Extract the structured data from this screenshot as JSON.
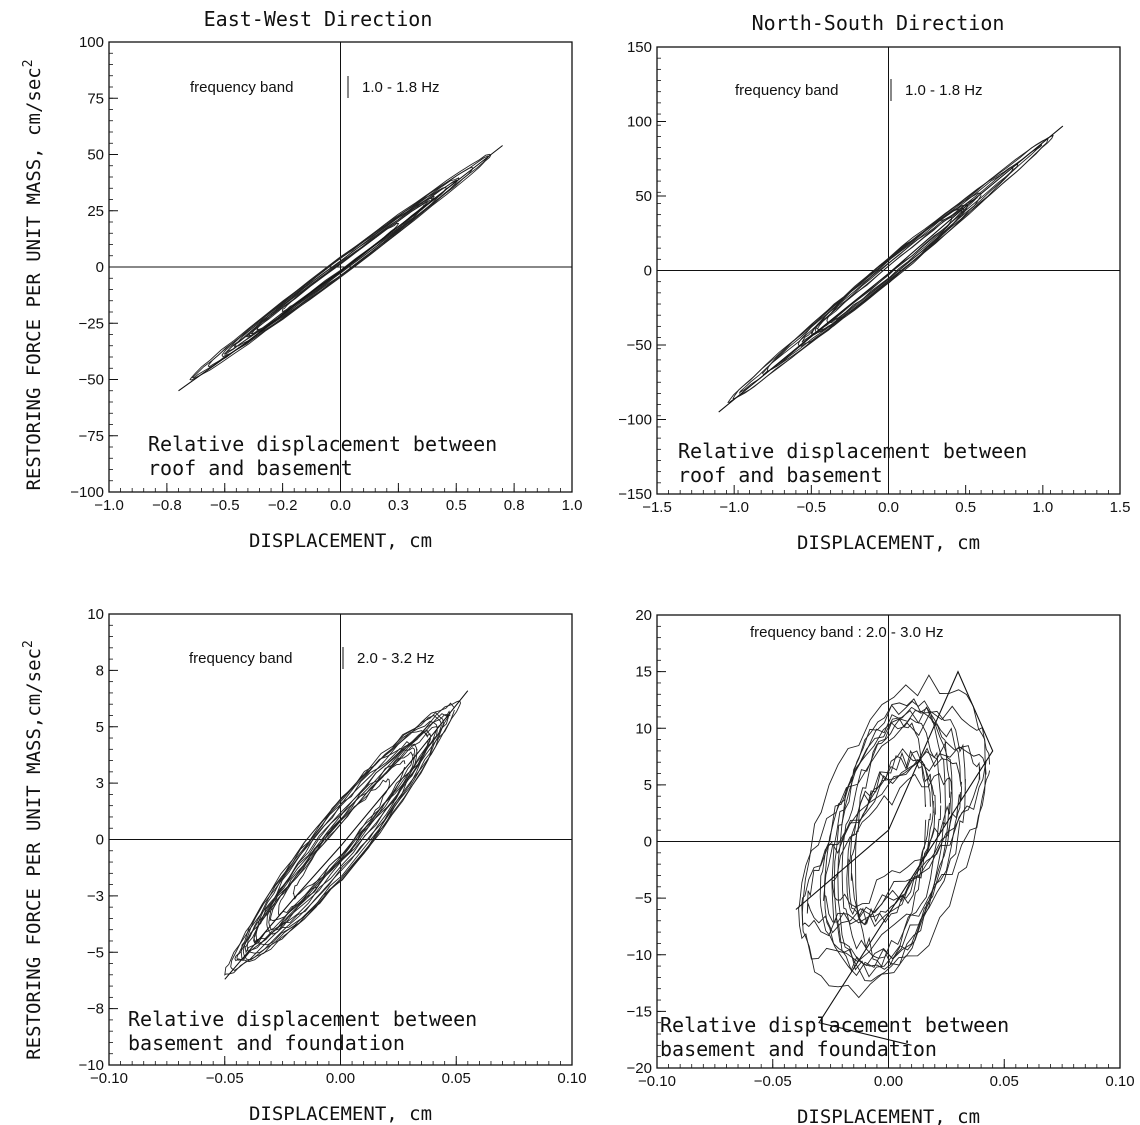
{
  "figure": {
    "column_titles": [
      "East-West Direction",
      "North-South Direction"
    ],
    "row_ylabels": [
      "RESTORING FORCE PER UNIT MASS, cm/sec",
      "RESTORING FORCE PER UNIT MASS,cm/sec"
    ],
    "ylabel_superscript": "2"
  },
  "chart_data": [
    {
      "type": "scatter",
      "title": "East-West Direction",
      "xlabel": "DISPLACEMENT,  cm",
      "xlim": [
        -1.0,
        1.0
      ],
      "ylim": [
        -100,
        100
      ],
      "x_ticks": [
        -1.0,
        -0.75,
        -0.5,
        -0.25,
        0.0,
        0.25,
        0.5,
        0.75,
        1.0
      ],
      "x_tick_labels": [
        "-1.0",
        "-0.8",
        "-0.5",
        "-0.2",
        "0.0",
        "0.3",
        "0.5",
        "0.8",
        "1.0"
      ],
      "y_ticks": [
        -100,
        -75,
        -50,
        -25,
        0,
        25,
        50,
        75,
        100
      ],
      "y_tick_labels": [
        "-100",
        "-75",
        "-50",
        "-25",
        "0",
        "25",
        "50",
        "75",
        "100"
      ],
      "band_text": [
        "frequency band",
        "1.0  -  1.8  Hz"
      ],
      "annotation": [
        "Relative displacement between",
        "roof and basement"
      ],
      "loop": {
        "slope": 77,
        "extent": [
          -0.7,
          0.7
        ],
        "width": 4,
        "cycles": 12
      },
      "series": [
        {
          "points": [
            [
              -0.7,
              -55
            ],
            [
              -0.4,
              -33
            ],
            [
              -0.1,
              -9
            ],
            [
              0.0,
              -2
            ],
            [
              0.2,
              14
            ],
            [
              0.4,
              30
            ],
            [
              0.7,
              54
            ]
          ]
        }
      ]
    },
    {
      "type": "scatter",
      "title": "North-South Direction",
      "xlabel": "DISPLACEMENT,  cm",
      "xlim": [
        -1.5,
        1.5
      ],
      "ylim": [
        -150,
        150
      ],
      "x_ticks": [
        -1.5,
        -1.0,
        -0.5,
        0.0,
        0.5,
        1.0,
        1.5
      ],
      "x_tick_labels": [
        "-1.5",
        "-1.0",
        "-0.5",
        "0.0",
        "0.5",
        "1.0",
        "1.5"
      ],
      "y_ticks": [
        -150,
        -100,
        -50,
        0,
        50,
        100,
        150
      ],
      "y_tick_labels": [
        "-150",
        "-100",
        "-50",
        "0",
        "50",
        "100",
        "150"
      ],
      "band_text": [
        "frequency band",
        "1.0  -  1.8  Hz"
      ],
      "annotation": [
        "Relative displacement between",
        "roof and basement"
      ],
      "loop": {
        "slope": 85,
        "extent": [
          -1.1,
          1.13
        ],
        "width": 8,
        "cycles": 12
      },
      "series": [
        {
          "points": [
            [
              -1.1,
              -95
            ],
            [
              -0.5,
              -44
            ],
            [
              0.0,
              -2
            ],
            [
              0.5,
              43
            ],
            [
              1.13,
              97
            ]
          ]
        }
      ]
    },
    {
      "type": "scatter",
      "title": "",
      "xlabel": "DISPLACEMENT,  cm",
      "xlim": [
        -0.1,
        0.1
      ],
      "ylim": [
        -10,
        10
      ],
      "x_ticks": [
        -0.1,
        -0.05,
        0.0,
        0.05,
        0.1
      ],
      "x_tick_labels": [
        "-0.10",
        "-0.05",
        "0.00",
        "0.05",
        "0.10"
      ],
      "y_ticks": [
        -10,
        -7.5,
        -5,
        -2.5,
        0,
        2.5,
        5,
        7.5,
        10
      ],
      "y_tick_labels": [
        "-10",
        "-8",
        "-5",
        "-3",
        "0",
        "3",
        "5",
        "8",
        "10"
      ],
      "band_text": [
        "frequency band",
        "2.0  -  3.2  Hz"
      ],
      "annotation": [
        "Relative displacement between",
        "basement and foundation"
      ],
      "loop": {
        "slope": 118,
        "extent": [
          -0.053,
          0.055
        ],
        "width": 1.6,
        "cycles": 16
      },
      "series": [
        {
          "points": [
            [
              -0.05,
              -6.2
            ],
            [
              -0.02,
              -2.6
            ],
            [
              0.0,
              -0.3
            ],
            [
              0.03,
              3.4
            ],
            [
              0.055,
              6.6
            ]
          ]
        }
      ]
    },
    {
      "type": "scatter",
      "title": "",
      "xlabel": "DISPLACEMENT,  cm",
      "xlim": [
        -0.1,
        0.1
      ],
      "ylim": [
        -20,
        20
      ],
      "x_ticks": [
        -0.1,
        -0.05,
        0.0,
        0.05,
        0.1
      ],
      "x_tick_labels": [
        "-0.10",
        "-0.05",
        "0.00",
        "0.05",
        "0.10"
      ],
      "y_ticks": [
        -20,
        -15,
        -10,
        -5,
        0,
        5,
        10,
        15,
        20
      ],
      "y_tick_labels": [
        "-20",
        "-15",
        "-10",
        "-5",
        "0",
        "5",
        "10",
        "15",
        "20"
      ],
      "band_text": [
        "frequency band : 2.0  -  3.0  Hz"
      ],
      "annotation": [
        "Relative displacement between",
        "basement and foundation"
      ],
      "loop": {
        "slope": 160,
        "extent": [
          -0.04,
          0.045
        ],
        "width": 12,
        "cycles": 16
      },
      "series": [
        {
          "points": [
            [
              -0.04,
              -6
            ],
            [
              0.0,
              1
            ],
            [
              0.03,
              15
            ],
            [
              0.045,
              8
            ],
            [
              -0.03,
              -16
            ],
            [
              0.01,
              -18
            ]
          ]
        }
      ]
    }
  ]
}
